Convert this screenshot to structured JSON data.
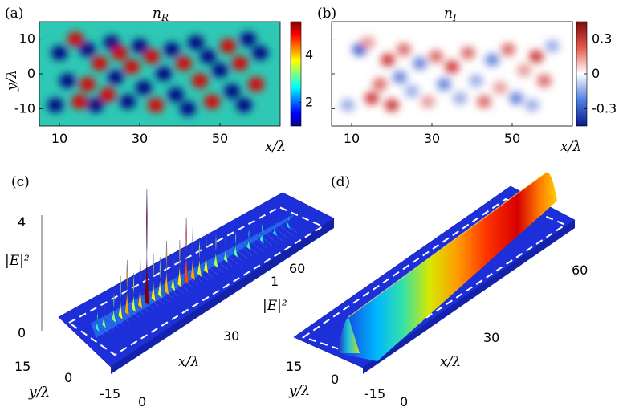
{
  "chart_data": [
    {
      "panel": "(a)",
      "type": "heatmap",
      "title": "n_R",
      "title_base": "n",
      "title_sub": "R",
      "xlabel": "x/λ",
      "ylabel": "y/λ",
      "xlim": [
        5,
        65
      ],
      "ylim": [
        -15,
        15
      ],
      "x_ticks": [
        "10",
        "30",
        "50"
      ],
      "y_ticks": [
        "10",
        "0",
        "-10"
      ],
      "colorbar": {
        "range": [
          1,
          5.4
        ],
        "ticks": [
          "4",
          "2"
        ],
        "colormap": "jet"
      },
      "blobs": [
        {
          "x": 9,
          "y": -9,
          "v": 1
        },
        {
          "x": 10,
          "y": 6,
          "v": 1
        },
        {
          "x": 12,
          "y": -2,
          "v": 1
        },
        {
          "x": 14,
          "y": 10,
          "v": 5
        },
        {
          "x": 15,
          "y": -8,
          "v": 5
        },
        {
          "x": 17,
          "y": -3,
          "v": 5
        },
        {
          "x": 17,
          "y": 7,
          "v": 1
        },
        {
          "x": 19,
          "y": -9,
          "v": 1
        },
        {
          "x": 20,
          "y": 3,
          "v": 5
        },
        {
          "x": 22,
          "y": -6,
          "v": 5
        },
        {
          "x": 23,
          "y": 9,
          "v": 1
        },
        {
          "x": 24,
          "y": -1,
          "v": 1
        },
        {
          "x": 25,
          "y": 6,
          "v": 5
        },
        {
          "x": 27,
          "y": -8,
          "v": 1
        },
        {
          "x": 28,
          "y": 2,
          "v": 5
        },
        {
          "x": 30,
          "y": 8,
          "v": 1
        },
        {
          "x": 31,
          "y": -4,
          "v": 1
        },
        {
          "x": 33,
          "y": 5,
          "v": 5
        },
        {
          "x": 34,
          "y": -9,
          "v": 5
        },
        {
          "x": 36,
          "y": 0,
          "v": 1
        },
        {
          "x": 38,
          "y": 7,
          "v": 1
        },
        {
          "x": 39,
          "y": -6,
          "v": 1
        },
        {
          "x": 41,
          "y": 3,
          "v": 5
        },
        {
          "x": 42,
          "y": -10,
          "v": 1
        },
        {
          "x": 44,
          "y": 9,
          "v": 1
        },
        {
          "x": 45,
          "y": -2,
          "v": 5
        },
        {
          "x": 47,
          "y": 5,
          "v": 1
        },
        {
          "x": 48,
          "y": -8,
          "v": 5
        },
        {
          "x": 50,
          "y": 1,
          "v": 1
        },
        {
          "x": 52,
          "y": 8,
          "v": 5
        },
        {
          "x": 53,
          "y": -5,
          "v": 1
        },
        {
          "x": 55,
          "y": 3,
          "v": 5
        },
        {
          "x": 56,
          "y": -9,
          "v": 1
        },
        {
          "x": 57,
          "y": 10,
          "v": 1
        },
        {
          "x": 59,
          "y": -3,
          "v": 5
        },
        {
          "x": 60,
          "y": 6,
          "v": 1
        }
      ]
    },
    {
      "panel": "(b)",
      "type": "heatmap",
      "title": "n_I",
      "title_base": "n",
      "title_sub": "I",
      "xlabel": "x/λ",
      "xlim": [
        5,
        65
      ],
      "ylim": [
        -15,
        15
      ],
      "x_ticks": [
        "10",
        "30",
        "50"
      ],
      "colorbar": {
        "range": [
          -0.45,
          0.45
        ],
        "ticks": [
          "0.3",
          "0",
          "-0.3"
        ],
        "colormap": "blue-white-red"
      },
      "blobs": [
        {
          "x": 9,
          "y": -9,
          "v": -0.2
        },
        {
          "x": 12,
          "y": 7,
          "v": -0.4
        },
        {
          "x": 14,
          "y": 9,
          "v": 0.2
        },
        {
          "x": 15,
          "y": -7,
          "v": 0.4
        },
        {
          "x": 17,
          "y": -3,
          "v": 0.3
        },
        {
          "x": 19,
          "y": 4,
          "v": 0.4
        },
        {
          "x": 20,
          "y": -9,
          "v": 0.4
        },
        {
          "x": 22,
          "y": -1,
          "v": -0.3
        },
        {
          "x": 23,
          "y": 7,
          "v": 0.3
        },
        {
          "x": 25,
          "y": -5,
          "v": -0.2
        },
        {
          "x": 27,
          "y": 3,
          "v": -0.3
        },
        {
          "x": 29,
          "y": -8,
          "v": 0.2
        },
        {
          "x": 31,
          "y": 5,
          "v": 0.3
        },
        {
          "x": 33,
          "y": -3,
          "v": -0.3
        },
        {
          "x": 35,
          "y": 2,
          "v": 0.4
        },
        {
          "x": 37,
          "y": -7,
          "v": -0.2
        },
        {
          "x": 39,
          "y": 6,
          "v": 0.3
        },
        {
          "x": 41,
          "y": -2,
          "v": -0.2
        },
        {
          "x": 43,
          "y": -8,
          "v": 0.3
        },
        {
          "x": 45,
          "y": 4,
          "v": -0.3
        },
        {
          "x": 47,
          "y": -4,
          "v": 0.2
        },
        {
          "x": 49,
          "y": 7,
          "v": 0.3
        },
        {
          "x": 51,
          "y": -7,
          "v": -0.3
        },
        {
          "x": 53,
          "y": 1,
          "v": 0.2
        },
        {
          "x": 55,
          "y": -9,
          "v": -0.2
        },
        {
          "x": 56,
          "y": 5,
          "v": 0.4
        },
        {
          "x": 58,
          "y": -2,
          "v": 0.3
        },
        {
          "x": 60,
          "y": 8,
          "v": -0.2
        }
      ]
    },
    {
      "panel": "(c)",
      "type": "surface3d",
      "zlabel": "|E|²",
      "z_ticks": [
        "4",
        "0"
      ],
      "x_axis_label": "x/λ",
      "x_ticks": [
        "30",
        "60"
      ],
      "y_axis_label": "y/λ",
      "y_ticks": [
        "15",
        "0",
        "-15"
      ],
      "zero_label": "0",
      "peaks": [
        {
          "x": 4,
          "z": 0.9
        },
        {
          "x": 6,
          "z": 1.2
        },
        {
          "x": 9,
          "z": 1.4
        },
        {
          "x": 11,
          "z": 2.0
        },
        {
          "x": 13,
          "z": 2.6
        },
        {
          "x": 15,
          "z": 1.8
        },
        {
          "x": 17,
          "z": 2.4
        },
        {
          "x": 19,
          "z": 5.5
        },
        {
          "x": 21,
          "z": 2.2
        },
        {
          "x": 23,
          "z": 1.9
        },
        {
          "x": 25,
          "z": 2.5
        },
        {
          "x": 27,
          "z": 1.7
        },
        {
          "x": 29,
          "z": 2.2
        },
        {
          "x": 31,
          "z": 3.1
        },
        {
          "x": 33,
          "z": 2.6
        },
        {
          "x": 35,
          "z": 1.8
        },
        {
          "x": 37,
          "z": 2.0
        },
        {
          "x": 40,
          "z": 1.6
        },
        {
          "x": 43,
          "z": 1.4
        },
        {
          "x": 46,
          "z": 1.2
        },
        {
          "x": 50,
          "z": 1.0
        },
        {
          "x": 54,
          "z": 0.9
        },
        {
          "x": 58,
          "z": 0.7
        },
        {
          "x": 62,
          "z": 0.6
        }
      ]
    },
    {
      "panel": "(d)",
      "type": "surface3d",
      "zlabel": "|E|²",
      "z_ticks": [
        "1"
      ],
      "x_axis_label": "x/λ",
      "x_ticks": [
        "30",
        "60"
      ],
      "y_axis_label": "y/λ",
      "y_ticks": [
        "15",
        "0",
        "-15"
      ],
      "zero_label": "0",
      "description_values": {
        "profile": "gaussian ridge along x, peak 1 at y=0"
      }
    }
  ]
}
